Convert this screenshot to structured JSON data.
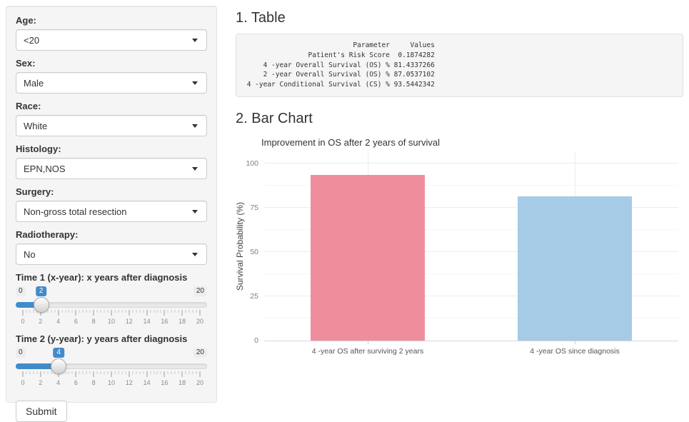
{
  "theme": {
    "accent_blue": "#428bca",
    "panel_bg": "#f5f5f5",
    "bar_pink": "#ee8e9d",
    "bar_blue": "#a6cbe7"
  },
  "sidebar": {
    "fields": [
      {
        "label": "Age:",
        "value": "<20"
      },
      {
        "label": "Sex:",
        "value": "Male"
      },
      {
        "label": "Race:",
        "value": "White"
      },
      {
        "label": "Histology:",
        "value": "EPN,NOS"
      },
      {
        "label": "Surgery:",
        "value": "Non-gross total resection"
      },
      {
        "label": "Radiotherapy:",
        "value": "No"
      }
    ],
    "sliders": [
      {
        "label": "Time 1 (x-year): x years after diagnosis",
        "min": 0,
        "max": 20,
        "value": 2,
        "tick_step": 2
      },
      {
        "label": "Time 2 (y-year): y years after diagnosis",
        "min": 0,
        "max": 20,
        "value": 4,
        "tick_step": 2
      }
    ],
    "submit_label": "Submit"
  },
  "main": {
    "table_heading": "1. Table",
    "table_text": "                           Parameter     Values\n                Patient's Risk Score  0.1874282\n     4 -year Overall Survival (OS) % 81.4337266\n     2 -year Overall Survival (OS) % 87.0537102\n 4 -year Conditional Survival (CS) % 93.5442342",
    "chart_heading": "2. Bar Chart"
  },
  "chart_data": {
    "type": "bar",
    "title": "Improvement in OS after 2 years of survival",
    "categories": [
      "4 -year OS after surviving 2 years",
      "4 -year OS since diagnosis"
    ],
    "values": [
      93.5442342,
      81.4337266
    ],
    "colors": [
      "#ee8e9d",
      "#a6cbe7"
    ],
    "xlabel": "",
    "ylabel": "Survival Probability (%)",
    "ylim": [
      0,
      100
    ],
    "yticks": [
      0,
      25,
      50,
      75,
      100
    ],
    "grid": true,
    "legend": "none"
  }
}
